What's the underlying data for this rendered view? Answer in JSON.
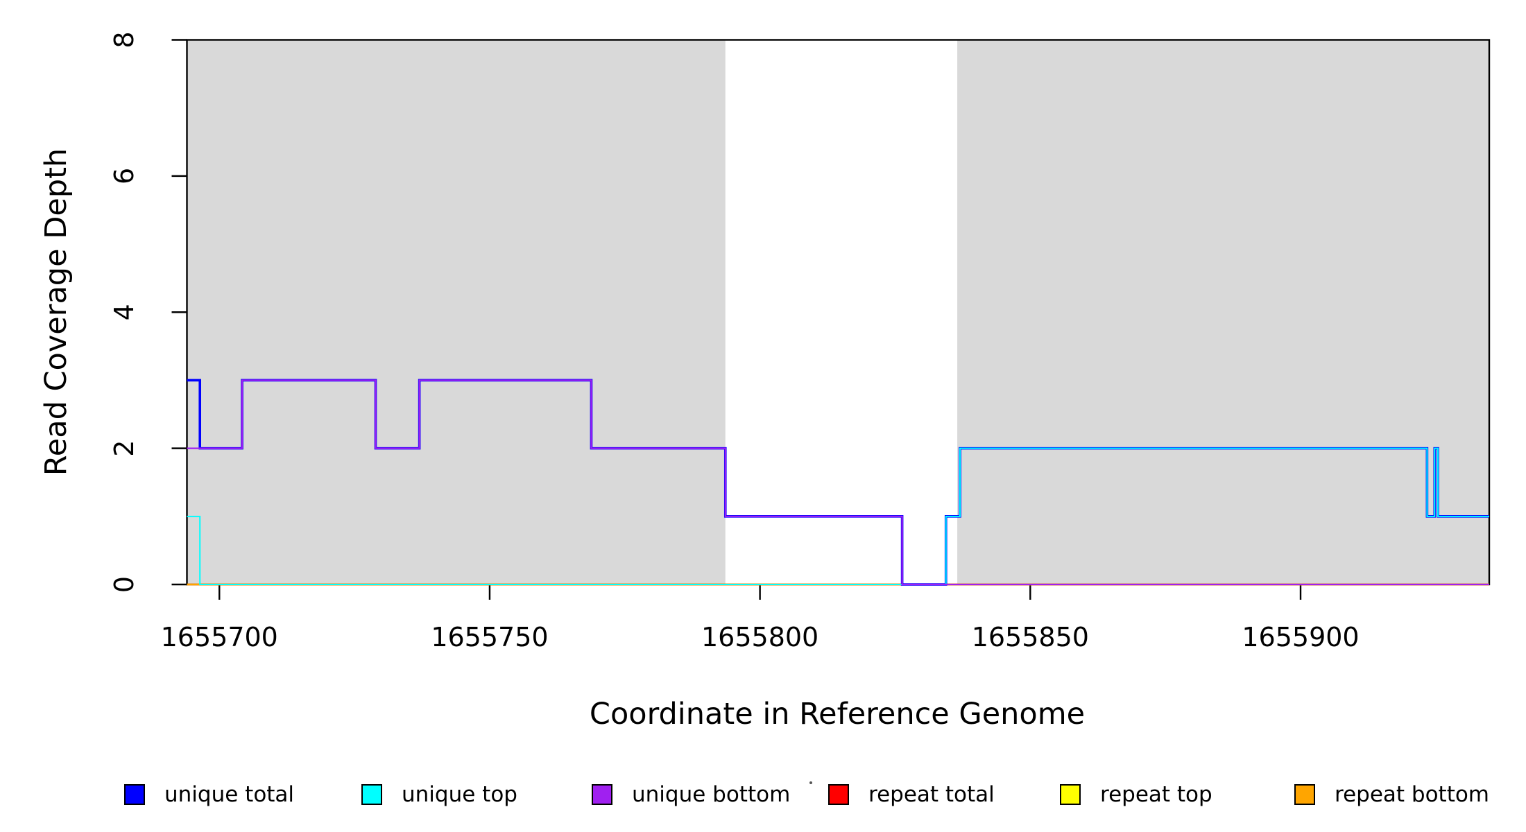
{
  "chart_data": {
    "type": "line",
    "subtype": "step-coverage-plot",
    "title": "",
    "xlabel": "Coordinate in Reference Genome",
    "ylabel": "Read Coverage Depth",
    "xlim": [
      1655694.0,
      1655934.9
    ],
    "ylim": [
      0,
      8
    ],
    "x_ticks": [
      1655700,
      1655750,
      1655800,
      1655850,
      1655900
    ],
    "y_ticks": [
      0,
      2,
      4,
      6,
      8
    ],
    "grid": false,
    "legend_position": "bottom",
    "frame_color": "#000000",
    "background_shading": {
      "color": "#d9d9d9",
      "regions": [
        [
          1655694.0,
          1655793.6
        ],
        [
          1655836.5,
          1655934.9
        ]
      ]
    },
    "series": [
      {
        "name": "unique total",
        "color": "#0000ff",
        "z": 4,
        "width": 3.6,
        "steps": [
          [
            1655694.0,
            3
          ],
          [
            1655696.4,
            2
          ],
          [
            1655704.2,
            3
          ],
          [
            1655728.9,
            2
          ],
          [
            1655737.0,
            3
          ],
          [
            1655768.8,
            2
          ],
          [
            1655793.6,
            1
          ],
          [
            1655826.3,
            0
          ],
          [
            1655834.4,
            1
          ],
          [
            1655837.0,
            2
          ],
          [
            1655923.4,
            1
          ],
          [
            1655924.8,
            2
          ],
          [
            1655925.4,
            1
          ]
        ]
      },
      {
        "name": "unique top",
        "color": "#00ffff",
        "z": 5,
        "width": 2.0,
        "steps": [
          [
            1655694.0,
            1
          ],
          [
            1655696.4,
            0
          ],
          [
            1655834.4,
            1
          ],
          [
            1655837.0,
            2
          ],
          [
            1655923.4,
            1
          ],
          [
            1655924.8,
            2
          ],
          [
            1655925.4,
            1
          ]
        ]
      },
      {
        "name": "unique bottom",
        "color": "#a020f0",
        "z": 6,
        "width": 2.2,
        "steps": [
          [
            1655694.0,
            2
          ],
          [
            1655704.2,
            3
          ],
          [
            1655728.9,
            2
          ],
          [
            1655737.0,
            3
          ],
          [
            1655768.8,
            2
          ],
          [
            1655793.6,
            1
          ],
          [
            1655826.3,
            0
          ]
        ]
      },
      {
        "name": "repeat total",
        "color": "#ff0000",
        "z": 1,
        "width": 2.6,
        "steps": [
          [
            1655694.0,
            0
          ]
        ]
      },
      {
        "name": "repeat top",
        "color": "#ffff00",
        "z": 2,
        "width": 2.2,
        "steps": [
          [
            1655694.0,
            0
          ]
        ]
      },
      {
        "name": "repeat bottom",
        "color": "#ffa500",
        "z": 3,
        "width": 2.6,
        "steps": [
          [
            1655694.0,
            0
          ]
        ]
      }
    ]
  },
  "legend": {
    "items": [
      {
        "label": "unique total",
        "color": "#0000ff"
      },
      {
        "label": "unique top",
        "color": "#00ffff"
      },
      {
        "label": "unique bottom",
        "color": "#a020f0"
      },
      {
        "label": "repeat total",
        "color": "#ff0000"
      },
      {
        "label": "repeat top",
        "color": "#ffff00"
      },
      {
        "label": "repeat bottom",
        "color": "#ffa500"
      }
    ]
  }
}
